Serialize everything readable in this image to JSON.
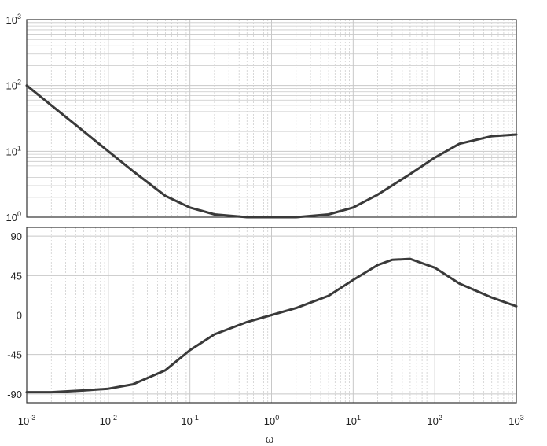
{
  "chart_data": [
    {
      "type": "line",
      "panel": "magnitude",
      "xscale": "log",
      "yscale": "log",
      "xlim": [
        0.001,
        1000
      ],
      "ylim": [
        1,
        1000
      ],
      "grid": true,
      "xlabel": "",
      "ylabel": "",
      "y_ticks": [
        {
          "value": 1,
          "base": "10",
          "exp": "0"
        },
        {
          "value": 10,
          "base": "10",
          "exp": "1"
        },
        {
          "value": 100,
          "base": "10",
          "exp": "2"
        },
        {
          "value": 1000,
          "base": "10",
          "exp": "3"
        }
      ],
      "series": [
        {
          "x": [
            0.001,
            0.002,
            0.005,
            0.01,
            0.02,
            0.05,
            0.1,
            0.2,
            0.5,
            1,
            2,
            5,
            10,
            20,
            50,
            100,
            200,
            500,
            1000
          ],
          "y": [
            100,
            50,
            20,
            10,
            5,
            2.1,
            1.4,
            1.1,
            1.0,
            1.0,
            1.0,
            1.1,
            1.4,
            2.2,
            4.5,
            8,
            13,
            17,
            18
          ]
        }
      ]
    },
    {
      "type": "line",
      "panel": "phase",
      "xscale": "log",
      "yscale": "linear",
      "xlim": [
        0.001,
        1000
      ],
      "ylim": [
        -100,
        100
      ],
      "grid": true,
      "xlabel": "ω",
      "ylabel": "",
      "y_ticks": [
        {
          "value": 90,
          "label": "90"
        },
        {
          "value": 45,
          "label": "45"
        },
        {
          "value": 0,
          "label": "0"
        },
        {
          "value": -45,
          "label": "-45"
        },
        {
          "value": -90,
          "label": "-90"
        }
      ],
      "x_ticks": [
        {
          "value": 0.001,
          "base": "10",
          "exp": "-3"
        },
        {
          "value": 0.01,
          "base": "10",
          "exp": "-2"
        },
        {
          "value": 0.1,
          "base": "10",
          "exp": "-1"
        },
        {
          "value": 1,
          "base": "10",
          "exp": "0"
        },
        {
          "value": 10,
          "base": "10",
          "exp": "1"
        },
        {
          "value": 100,
          "base": "10",
          "exp": "2"
        },
        {
          "value": 1000,
          "base": "10",
          "exp": "3"
        }
      ],
      "series": [
        {
          "x": [
            0.001,
            0.002,
            0.005,
            0.01,
            0.02,
            0.05,
            0.1,
            0.2,
            0.5,
            1,
            2,
            5,
            10,
            20,
            30,
            50,
            100,
            200,
            500,
            1000
          ],
          "y": [
            -88,
            -88,
            -86,
            -84,
            -79,
            -63,
            -40,
            -22,
            -8,
            0,
            8,
            22,
            40,
            57,
            63,
            64,
            54,
            36,
            20,
            10
          ]
        }
      ]
    }
  ],
  "colors": {
    "line": "#3a3a3a",
    "grid": "#c8c8c8",
    "axes": "#333333",
    "background": "#ffffff"
  }
}
